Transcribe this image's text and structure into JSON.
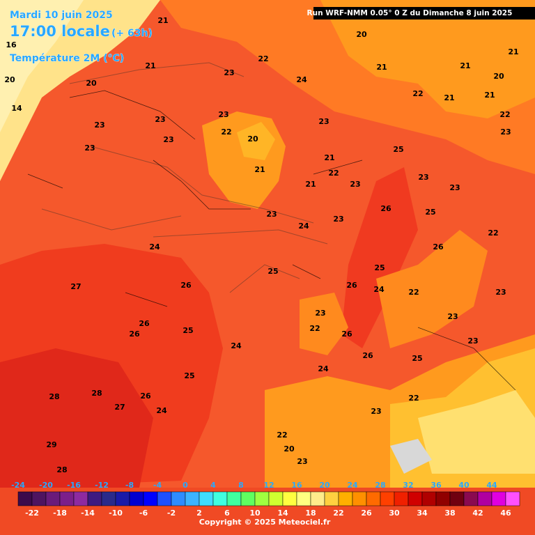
{
  "header": {
    "date": "Mardi 10 juin 2025",
    "time": "17:00 locale",
    "lead": "(+ 63h)",
    "field": "Température 2M (°C)",
    "run": "Run WRF-NMM 0.05° 0 Z du Dimanche 8 juin 2025"
  },
  "footer": {
    "copyright": "Copyright © 2025 Meteociel.fr"
  },
  "legend": {
    "top_labels": [
      -24,
      -20,
      -16,
      -12,
      -8,
      -4,
      0,
      4,
      8,
      12,
      16,
      20,
      24,
      28,
      32,
      36,
      40,
      44
    ],
    "bottom_labels": [
      -22,
      -18,
      -14,
      -10,
      -6,
      -2,
      2,
      6,
      10,
      14,
      18,
      22,
      26,
      30,
      34,
      38,
      42,
      46
    ],
    "colors": [
      "#3c0a4b",
      "#4e1460",
      "#6a1b7a",
      "#7c1f8a",
      "#8e2aa0",
      "#3e1a80",
      "#2a2a8a",
      "#1a1aa8",
      "#0000d0",
      "#0000ff",
      "#1e50ff",
      "#2e8cff",
      "#3cb4ff",
      "#40dcff",
      "#40ffe0",
      "#40ffa0",
      "#60ff60",
      "#a0ff40",
      "#d0ff30",
      "#ffff40",
      "#ffff80",
      "#ffec8b",
      "#ffd040",
      "#ffb000",
      "#ff9000",
      "#ff6a00",
      "#ff4000",
      "#f02000",
      "#d00000",
      "#b00000",
      "#900000",
      "#700010",
      "#8a0a50",
      "#b000a0",
      "#e000e0",
      "#ff50ff"
    ]
  },
  "map": {
    "labels": [
      21,
      22,
      24,
      23,
      23,
      23,
      22,
      20,
      21,
      23,
      23,
      23,
      23,
      21,
      22,
      21,
      23,
      25,
      26,
      25,
      26,
      23,
      23,
      24,
      23,
      23,
      24,
      25,
      27,
      26,
      26,
      26,
      25,
      24,
      25,
      28,
      28,
      27,
      26,
      24,
      29,
      28,
      26,
      25,
      24,
      22,
      23,
      22,
      26,
      26,
      25,
      24,
      22,
      23,
      23,
      23,
      23,
      22,
      22,
      23,
      20,
      21,
      22,
      21,
      21,
      20,
      21,
      21,
      16,
      20,
      14,
      20,
      21,
      22,
      20,
      23
    ]
  }
}
